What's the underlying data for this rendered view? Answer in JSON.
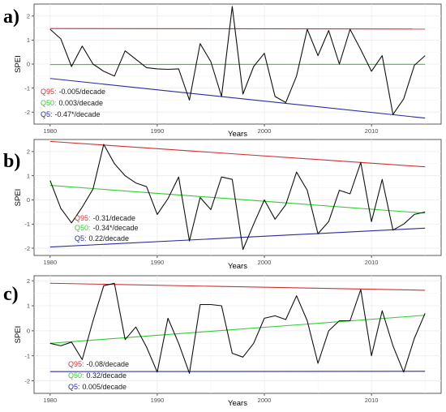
{
  "colors": {
    "q95": "#cc3333",
    "q50": "#33cc33",
    "q5": "#2a2a9c",
    "series": "#111111"
  },
  "chart_data": [
    {
      "type": "line",
      "panel_label": "a)",
      "xlabel": "Years",
      "ylabel": "SPEI",
      "xlim": [
        1978.5,
        2016.5
      ],
      "ylim": [
        -2.5,
        2.5
      ],
      "xticks": [
        1980,
        1990,
        2000,
        2010
      ],
      "yticks": [
        -2,
        -1,
        0,
        1,
        2
      ],
      "series": [
        {
          "x": [
            1980,
            1981,
            1982,
            1983,
            1984,
            1985,
            1986,
            1987,
            1988,
            1989,
            1990,
            1991,
            1992,
            1993,
            1994,
            1995,
            1996,
            1997,
            1998,
            1999,
            2000,
            2001,
            2002,
            2003,
            2004,
            2005,
            2006,
            2007,
            2008,
            2009,
            2010,
            2011,
            2012,
            2013,
            2014,
            2015
          ],
          "y": [
            1.45,
            1.05,
            -0.1,
            0.75,
            0.0,
            -0.3,
            -0.5,
            0.55,
            0.2,
            -0.15,
            -0.2,
            -0.22,
            -0.2,
            -1.5,
            0.85,
            0.1,
            -1.35,
            2.4,
            -1.25,
            -0.1,
            0.45,
            -1.35,
            -1.6,
            -0.5,
            1.45,
            0.35,
            1.4,
            0.0,
            1.45,
            0.6,
            -0.3,
            0.35,
            -2.1,
            -1.45,
            -0.05,
            0.35
          ]
        }
      ],
      "quantile_lines": [
        {
          "key": "q95",
          "label": "Q95:",
          "trend": "-0.005/decade",
          "start": 1.48,
          "end": 1.46
        },
        {
          "key": "q50",
          "label": "Q50:",
          "trend": "0.003/decade",
          "start": -0.02,
          "end": -0.01
        },
        {
          "key": "q5",
          "label": "Q5:",
          "trend": "-0.47*/decade",
          "start": -0.6,
          "end": -2.25
        }
      ]
    },
    {
      "type": "line",
      "panel_label": "b)",
      "xlabel": "Years",
      "ylabel": "SPEI",
      "xlim": [
        1978.5,
        2016.5
      ],
      "ylim": [
        -2.3,
        2.5
      ],
      "xticks": [
        1980,
        1990,
        2000,
        2010
      ],
      "yticks": [
        -2,
        -1,
        0,
        1,
        2
      ],
      "series": [
        {
          "x": [
            1980,
            1981,
            1982,
            1983,
            1984,
            1985,
            1986,
            1987,
            1988,
            1989,
            1990,
            1991,
            1992,
            1993,
            1994,
            1995,
            1996,
            1997,
            1998,
            1999,
            2000,
            2001,
            2002,
            2003,
            2004,
            2005,
            2006,
            2007,
            2008,
            2009,
            2010,
            2011,
            2012,
            2013,
            2014,
            2015
          ],
          "y": [
            0.8,
            -0.35,
            -0.95,
            -0.3,
            0.45,
            2.3,
            1.5,
            1.0,
            0.7,
            0.55,
            -0.6,
            0.05,
            0.95,
            -1.7,
            0.1,
            -0.4,
            0.95,
            0.85,
            -2.05,
            -1.0,
            0.0,
            -0.8,
            -0.2,
            1.15,
            0.4,
            -1.4,
            -0.9,
            0.4,
            0.25,
            1.55,
            -0.9,
            0.85,
            -1.25,
            -1.0,
            -0.6,
            -0.5
          ]
        }
      ],
      "quantile_lines": [
        {
          "key": "q95",
          "label": "Q95:",
          "trend": "-0.31/decade",
          "start": 2.42,
          "end": 1.37
        },
        {
          "key": "q50",
          "label": "Q50:",
          "trend": "-0.34*/decade",
          "start": 0.6,
          "end": -0.55
        },
        {
          "key": "q5",
          "label": "Q5:",
          "trend": "0.22/decade",
          "start": -1.95,
          "end": -1.17
        }
      ]
    },
    {
      "type": "line",
      "panel_label": "c)",
      "xlabel": "Years",
      "ylabel": "SPEI",
      "xlim": [
        1978.5,
        2016.5
      ],
      "ylim": [
        -2.5,
        2.2
      ],
      "xticks": [
        1980,
        1990,
        2000,
        2010
      ],
      "yticks": [
        -2,
        -1,
        0,
        1,
        2
      ],
      "series": [
        {
          "x": [
            1980,
            1981,
            1982,
            1983,
            1984,
            1985,
            1986,
            1987,
            1988,
            1989,
            1990,
            1991,
            1992,
            1993,
            1994,
            1995,
            1996,
            1997,
            1998,
            1999,
            2000,
            2001,
            2002,
            2003,
            2004,
            2005,
            2006,
            2007,
            2008,
            2009,
            2010,
            2011,
            2012,
            2013,
            2014,
            2015
          ],
          "y": [
            -0.5,
            -0.6,
            -0.45,
            -1.15,
            0.4,
            1.8,
            1.9,
            -0.35,
            0.15,
            -0.65,
            -1.65,
            0.5,
            -0.5,
            -1.7,
            1.05,
            1.05,
            1.0,
            -0.9,
            -1.05,
            -0.5,
            0.5,
            0.6,
            0.45,
            1.4,
            0.4,
            -1.3,
            0.0,
            0.4,
            0.4,
            1.65,
            -1.0,
            0.8,
            -0.6,
            -1.65,
            -0.3,
            0.7
          ]
        }
      ],
      "quantile_lines": [
        {
          "key": "q95",
          "label": "Q95:",
          "trend": "-0.08/decade",
          "start": 1.9,
          "end": 1.62
        },
        {
          "key": "q50",
          "label": "Q50:",
          "trend": "0.32/decade",
          "start": -0.5,
          "end": 0.62
        },
        {
          "key": "q5",
          "label": "Q5:",
          "trend": "0.005/decade",
          "start": -1.63,
          "end": -1.62
        }
      ]
    }
  ]
}
